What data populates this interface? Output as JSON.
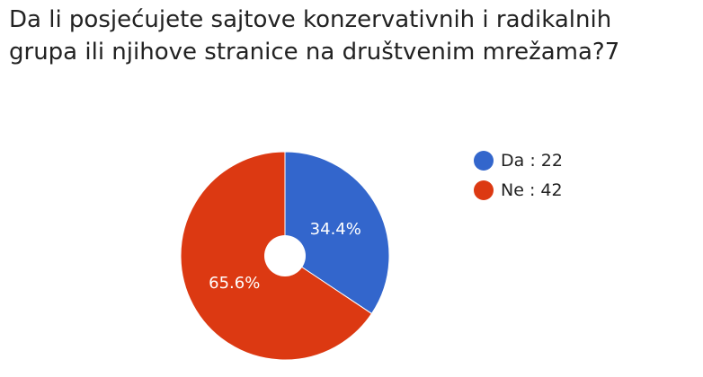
{
  "title_lines": [
    "Da li posjećujete sajtove konzervativnih i radikalnih",
    "grupa ili njihove stranice na društvenim mrežama?7"
  ],
  "chart_data": {
    "type": "pie",
    "title": "Da li posjećujete sajtove konzervativnih i radikalnih grupa ili njihove stranice na društvenim mrežama?7",
    "donut": true,
    "legend_position": "right",
    "slices": [
      {
        "label": "Da",
        "value": 22,
        "percent_label": "34.4%",
        "color": "#3366cc",
        "legend_text": "Da : 22"
      },
      {
        "label": "Ne",
        "value": 42,
        "percent_label": "65.6%",
        "color": "#dc3912",
        "legend_text": "Ne : 42"
      }
    ]
  }
}
